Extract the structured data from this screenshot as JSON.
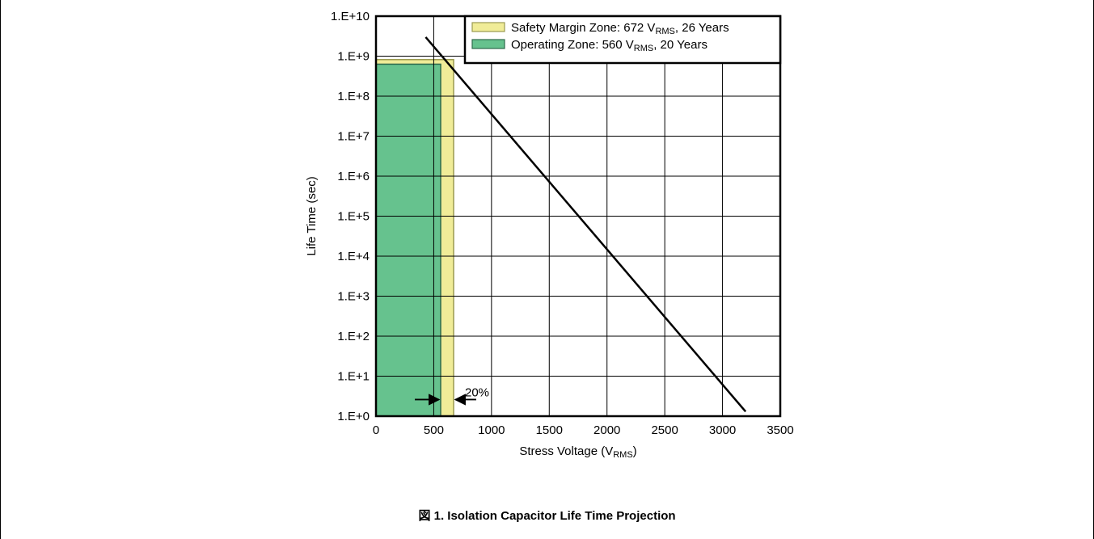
{
  "caption": "図 1. Isolation Capacitor Life Time Projection",
  "chart_data": {
    "type": "line",
    "xlabel_main": "Stress Voltage (V",
    "xlabel_sub": "RMS",
    "xlabel_end": ")",
    "ylabel": "Life Time (sec)",
    "x_ticks": [
      "0",
      "500",
      "1000",
      "1500",
      "2000",
      "2500",
      "3000",
      "3500"
    ],
    "x_tick_values": [
      0,
      500,
      1000,
      1500,
      2000,
      2500,
      3000,
      3500
    ],
    "y_ticks": [
      "1.E+0",
      "1.E+1",
      "1.E+2",
      "1.E+3",
      "1.E+4",
      "1.E+5",
      "1.E+6",
      "1.E+7",
      "1.E+8",
      "1.E+9",
      "1.E+10"
    ],
    "y_tick_exponents": [
      0,
      1,
      2,
      3,
      4,
      5,
      6,
      7,
      8,
      9,
      10
    ],
    "xlim": [
      0,
      3500
    ],
    "ylim": [
      1,
      10000000000
    ],
    "y_scale": "log",
    "grid": true,
    "legend_placement": "top-right",
    "series": [
      {
        "name": "",
        "x": [
          430,
          3200
        ],
        "y": [
          3000000000,
          1.3
        ],
        "color": "#000000"
      }
    ],
    "zones": [
      {
        "legend_main": "Safety Margin Zone: 672 V",
        "legend_sub": "RMS",
        "legend_end": ", 26 Years",
        "x_max": 672,
        "y_max": 820000000,
        "fill": "#f0ec98",
        "stroke": "#9a9a50"
      },
      {
        "legend_main": "Operating Zone: 560 V",
        "legend_sub": "RMS",
        "legend_end": ", 20 Years",
        "x_max": 560,
        "y_max": 630000000,
        "fill": "#66c28e",
        "stroke": "#2e6a4c"
      }
    ],
    "annotation": {
      "text": "20%",
      "x_left": 560,
      "x_right": 672,
      "y": 2.6
    }
  }
}
